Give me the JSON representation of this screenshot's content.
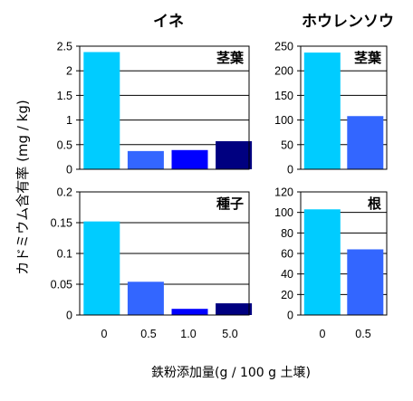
{
  "figure": {
    "ylabel": "カドミウム含有率 (mg / kg)",
    "xlabel": "鉄粉添加量(g / 100 g 土壌)",
    "columns": [
      "イネ",
      "ホウレンソウ"
    ]
  },
  "chart_data": [
    {
      "type": "bar",
      "crop": "イネ",
      "panel_label": "茎葉",
      "categories": [
        "0",
        "0.5",
        "1.0",
        "5.0"
      ],
      "values": [
        2.38,
        0.37,
        0.39,
        0.57
      ],
      "ylim": [
        0,
        2.5
      ],
      "yticks": [
        "0",
        "0.5",
        "1",
        "1.5",
        "2",
        "2.5"
      ],
      "colors": [
        "#00ccff",
        "#3366ff",
        "#0000ff",
        "#000080"
      ],
      "show_xticks": false
    },
    {
      "type": "bar",
      "crop": "ホウレンソウ",
      "panel_label": "茎葉",
      "categories": [
        "0",
        "0.5"
      ],
      "values": [
        237,
        108
      ],
      "ylim": [
        0,
        250
      ],
      "yticks": [
        "0",
        "50",
        "100",
        "150",
        "200",
        "250"
      ],
      "colors": [
        "#00ccff",
        "#3366ff"
      ],
      "show_xticks": false
    },
    {
      "type": "bar",
      "crop": "イネ",
      "panel_label": "種子",
      "categories": [
        "0",
        "0.5",
        "1.0",
        "5.0"
      ],
      "values": [
        0.152,
        0.054,
        0.01,
        0.019
      ],
      "ylim": [
        0,
        0.2
      ],
      "yticks": [
        "0",
        "0.05",
        "0.1",
        "0.15",
        "0.2"
      ],
      "colors": [
        "#00ccff",
        "#3366ff",
        "#0000ff",
        "#000080"
      ],
      "show_xticks": true
    },
    {
      "type": "bar",
      "crop": "ホウレンソウ",
      "panel_label": "根",
      "categories": [
        "0",
        "0.5"
      ],
      "values": [
        103,
        64
      ],
      "ylim": [
        0,
        120
      ],
      "yticks": [
        "0",
        "20",
        "40",
        "60",
        "80",
        "100",
        "120"
      ],
      "colors": [
        "#00ccff",
        "#3366ff"
      ],
      "show_xticks": true
    }
  ]
}
